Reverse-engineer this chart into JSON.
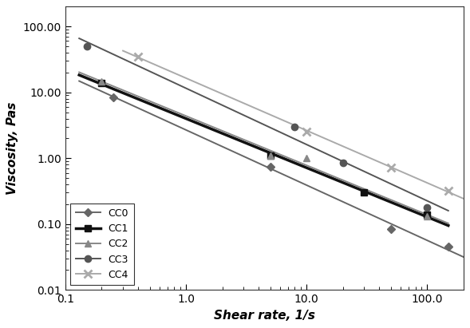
{
  "xlabel": "Shear rate, 1/s",
  "ylabel": "Viscosity, Pas",
  "xlim": [
    0.1,
    200.0
  ],
  "ylim": [
    0.01,
    200.0
  ],
  "CC0": {
    "x": [
      0.15,
      0.25,
      5.0,
      50.0,
      150.0
    ],
    "y": [
      50.0,
      8.5,
      0.75,
      0.085,
      0.045
    ],
    "color": "#666666",
    "lw": 1.4,
    "marker": "D",
    "ms": 5
  },
  "CC1": {
    "x": [
      0.2,
      5.0,
      30.0,
      100.0
    ],
    "y": [
      14.0,
      1.1,
      0.32,
      0.14
    ],
    "color": "#111111",
    "lw": 2.5,
    "marker": "s",
    "ms": 6
  },
  "CC2": {
    "x": [
      0.2,
      5.0,
      10.0,
      100.0
    ],
    "y": [
      14.5,
      1.1,
      1.0,
      0.13
    ],
    "color": "#888888",
    "lw": 1.4,
    "marker": "^",
    "ms": 6
  },
  "CC3": {
    "x": [
      0.15,
      8.0,
      20.0,
      100.0
    ],
    "y": [
      50.0,
      3.0,
      0.85,
      0.18
    ],
    "color": "#555555",
    "lw": 1.4,
    "marker": "o",
    "ms": 6
  },
  "CC4": {
    "x": [
      0.4,
      10.0,
      50.0,
      150.0
    ],
    "y": [
      35.0,
      2.5,
      0.72,
      0.32
    ],
    "color": "#aaaaaa",
    "lw": 1.4,
    "marker": "x",
    "ms": 7
  },
  "series_order": [
    "CC0",
    "CC1",
    "CC2",
    "CC3",
    "CC4"
  ],
  "yticks": [
    0.01,
    0.1,
    1.0,
    10.0,
    100.0
  ],
  "ytick_labels": [
    "0.01",
    "0.10",
    "1.00",
    "10.00",
    "100.00"
  ],
  "xticks": [
    0.1,
    1.0,
    10.0,
    100.0
  ],
  "xtick_labels": [
    "0.1",
    "1.0",
    "10.0",
    "100.0"
  ]
}
